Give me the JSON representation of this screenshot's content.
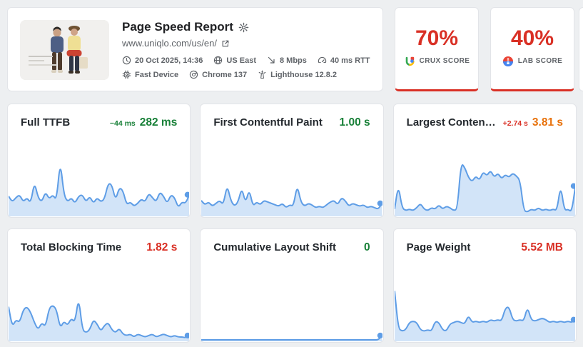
{
  "header": {
    "title": "Page Speed Report",
    "url": "www.uniqlo.com/us/en/",
    "meta_row1": [
      {
        "icon": "clock-icon",
        "label": "20 Oct 2025, 14:36"
      },
      {
        "icon": "globe-icon",
        "label": "US East"
      },
      {
        "icon": "bandwidth-icon",
        "label": "8 Mbps"
      },
      {
        "icon": "rtt-gauge-icon",
        "label": "40 ms RTT"
      }
    ],
    "meta_row2": [
      {
        "icon": "device-chip-icon",
        "label": "Fast Device"
      },
      {
        "icon": "chrome-icon",
        "label": "Chrome 137"
      },
      {
        "icon": "lighthouse-icon",
        "label": "Lighthouse 12.8.2"
      }
    ]
  },
  "scores": [
    {
      "value": "70%",
      "label": "CRUX SCORE",
      "icon": "crux-logo-icon",
      "color": "#d93025"
    },
    {
      "value": "40%",
      "label": "LAB SCORE",
      "icon": "lighthouse-logo-icon",
      "color": "#d93025"
    }
  ],
  "metrics": [
    {
      "title": "Full TTFB",
      "delta": "−44 ms",
      "delta_color": "#188038",
      "value": "282 ms",
      "value_color": "#188038"
    },
    {
      "title": "First Contentful Paint",
      "delta": "",
      "delta_color": "",
      "value": "1.00 s",
      "value_color": "#188038"
    },
    {
      "title": "Largest Contentful Paint",
      "delta": "+2.74 s",
      "delta_color": "#d93025",
      "value": "3.81 s",
      "value_color": "#e8710a"
    },
    {
      "title": "Total Blocking Time",
      "delta": "",
      "delta_color": "",
      "value": "1.82 s",
      "value_color": "#d93025"
    },
    {
      "title": "Cumulative Layout Shift",
      "delta": "",
      "delta_color": "",
      "value": "0",
      "value_color": "#188038"
    },
    {
      "title": "Page Weight",
      "delta": "",
      "delta_color": "",
      "value": "5.52 MB",
      "value_color": "#d93025"
    }
  ],
  "chart_data": [
    {
      "type": "area",
      "metric": "Full TTFB",
      "line_color": "#5e9de6",
      "fill_color": "rgba(94,157,230,0.28)",
      "values": [
        28,
        20,
        26,
        30,
        20,
        26,
        18,
        48,
        26,
        20,
        34,
        24,
        30,
        22,
        78,
        30,
        20,
        26,
        18,
        28,
        30,
        20,
        28,
        18,
        26,
        20,
        24,
        46,
        44,
        22,
        40,
        36,
        16,
        20,
        14,
        18,
        24,
        20,
        32,
        26,
        20,
        34,
        28,
        18,
        30,
        26,
        12,
        20,
        18,
        30
      ]
    },
    {
      "type": "area",
      "metric": "First Contentful Paint",
      "line_color": "#5e9de6",
      "fill_color": "rgba(94,157,230,0.28)",
      "values": [
        22,
        16,
        20,
        14,
        18,
        22,
        16,
        44,
        22,
        14,
        20,
        40,
        18,
        38,
        14,
        20,
        16,
        22,
        20,
        18,
        16,
        14,
        18,
        12,
        16,
        14,
        44,
        20,
        14,
        18,
        16,
        12,
        14,
        12,
        16,
        20,
        22,
        16,
        26,
        22,
        14,
        18,
        16,
        14,
        16,
        12,
        14,
        12,
        10,
        18
      ]
    },
    {
      "type": "area",
      "metric": "Largest Contentful Paint",
      "line_color": "#5e9de6",
      "fill_color": "rgba(94,157,230,0.28)",
      "values": [
        10,
        44,
        12,
        8,
        10,
        8,
        12,
        18,
        10,
        8,
        12,
        10,
        16,
        10,
        14,
        12,
        8,
        10,
        74,
        68,
        54,
        48,
        56,
        50,
        62,
        56,
        64,
        54,
        60,
        52,
        58,
        54,
        60,
        56,
        50,
        8,
        6,
        10,
        8,
        12,
        8,
        10,
        8,
        10,
        8,
        44,
        8,
        10,
        6,
        42
      ]
    },
    {
      "type": "area",
      "metric": "Total Blocking Time",
      "line_color": "#5e9de6",
      "fill_color": "rgba(94,157,230,0.28)",
      "values": [
        48,
        20,
        30,
        26,
        44,
        48,
        40,
        26,
        16,
        26,
        20,
        46,
        50,
        44,
        18,
        28,
        22,
        32,
        26,
        62,
        16,
        12,
        16,
        30,
        24,
        14,
        22,
        26,
        16,
        12,
        18,
        10,
        8,
        10,
        6,
        10,
        8,
        6,
        8,
        10,
        6,
        8,
        10,
        8,
        6,
        8,
        6,
        6,
        5,
        8
      ]
    },
    {
      "type": "area",
      "metric": "Cumulative Layout Shift",
      "line_color": "#5e9de6",
      "fill_color": "rgba(94,157,230,0.28)",
      "values": [
        2,
        2,
        2,
        2,
        2,
        2,
        2,
        2,
        2,
        2,
        2,
        2,
        2,
        2,
        2,
        2,
        2,
        2,
        2,
        2,
        2,
        2,
        2,
        2,
        2,
        2,
        2,
        2,
        2,
        2,
        2,
        2,
        2,
        2,
        2,
        2,
        2,
        2,
        2,
        2,
        2,
        2,
        2,
        2,
        2,
        2,
        2,
        2,
        2,
        8
      ]
    },
    {
      "type": "area",
      "metric": "Page Weight",
      "line_color": "#5e9de6",
      "fill_color": "rgba(94,157,230,0.28)",
      "values": [
        70,
        18,
        14,
        16,
        26,
        28,
        26,
        16,
        14,
        16,
        14,
        28,
        26,
        16,
        14,
        24,
        26,
        28,
        26,
        24,
        36,
        26,
        28,
        26,
        28,
        26,
        30,
        28,
        30,
        28,
        46,
        48,
        30,
        28,
        30,
        28,
        48,
        30,
        28,
        30,
        32,
        30,
        26,
        28,
        26,
        28,
        26,
        28,
        26,
        30
      ]
    }
  ]
}
